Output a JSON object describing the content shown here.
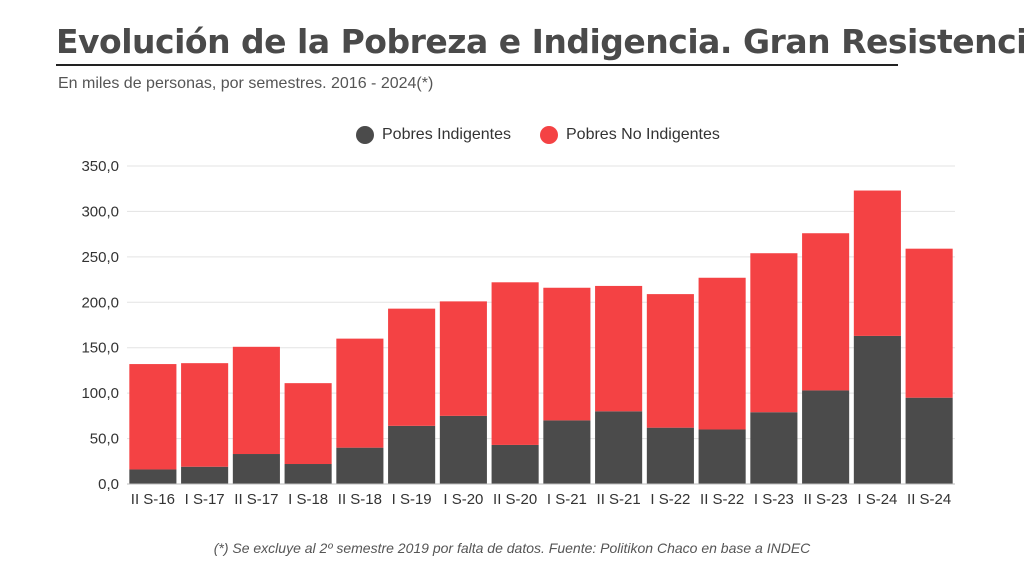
{
  "title": "Evolución de la Pobreza e Indigencia. Gran Resistencia",
  "subtitle": "En miles de personas, por semestres. 2016 - 2024(*)",
  "footnote": "(*) Se excluye al 2º semestre 2019 por falta de datos. Fuente: Politikon Chaco en base a INDEC",
  "legend": {
    "items": [
      {
        "label": "Pobres Indigentes",
        "color": "#4b4b4b"
      },
      {
        "label": "Pobres No Indigentes",
        "color": "#f44244"
      }
    ]
  },
  "chart_data": {
    "type": "bar",
    "stacked": true,
    "categories": [
      "II S-16",
      "I S-17",
      "II S-17",
      "I S-18",
      "II S-18",
      "I S-19",
      "I S-20",
      "II S-20",
      "I S-21",
      "II S-21",
      "I S-22",
      "II S-22",
      "I S-23",
      "II S-23",
      "I S-24",
      "II S-24"
    ],
    "series": [
      {
        "name": "Pobres Indigentes",
        "color": "#4b4b4b",
        "values": [
          16,
          19,
          33,
          22,
          40,
          64,
          75,
          43,
          70,
          80,
          62,
          60,
          79,
          103,
          163,
          95
        ]
      },
      {
        "name": "Pobres No Indigentes",
        "color": "#f44244",
        "values": [
          116,
          114,
          118,
          89,
          120,
          129,
          126,
          179,
          146,
          138,
          147,
          167,
          175,
          173,
          160,
          164
        ]
      }
    ],
    "ylim": [
      0,
      350
    ],
    "yticks": [
      "0,0",
      "50,0",
      "100,0",
      "150,0",
      "200,0",
      "250,0",
      "300,0",
      "350,0"
    ],
    "grid": true,
    "legend_position": "top"
  }
}
